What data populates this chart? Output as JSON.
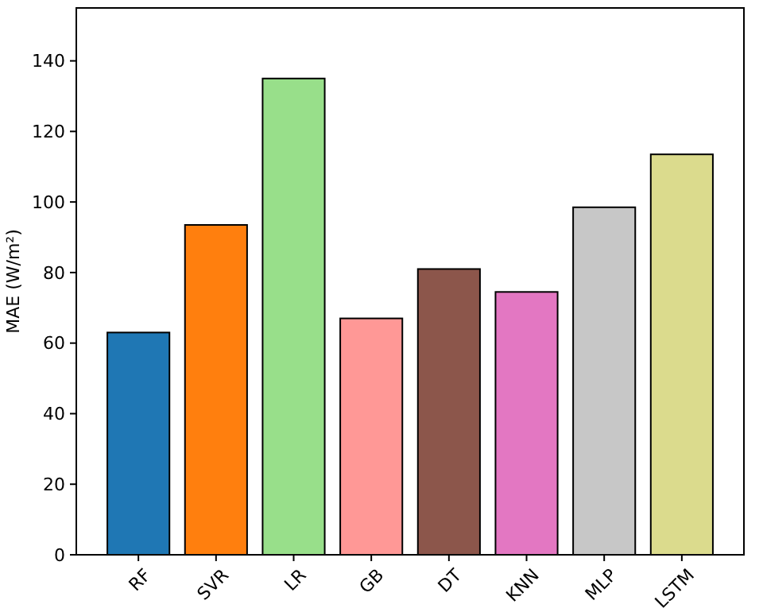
{
  "chart_data": {
    "type": "bar",
    "ylabel": "MAE (W/m²)",
    "categories": [
      "RF",
      "SVR",
      "LR",
      "GB",
      "DT",
      "KNN",
      "MLP",
      "LSTM"
    ],
    "values": [
      63,
      93.5,
      135,
      67,
      81,
      74.5,
      98.5,
      113.5
    ],
    "colors": [
      "#1f77b4",
      "#ff7f0e",
      "#98df8a",
      "#ff9896",
      "#8c564b",
      "#e377c2",
      "#c7c7c7",
      "#dbdb8d"
    ],
    "ylim": [
      0,
      155
    ],
    "yticks": [
      0,
      20,
      40,
      60,
      80,
      100,
      120,
      140
    ],
    "grid": false
  }
}
